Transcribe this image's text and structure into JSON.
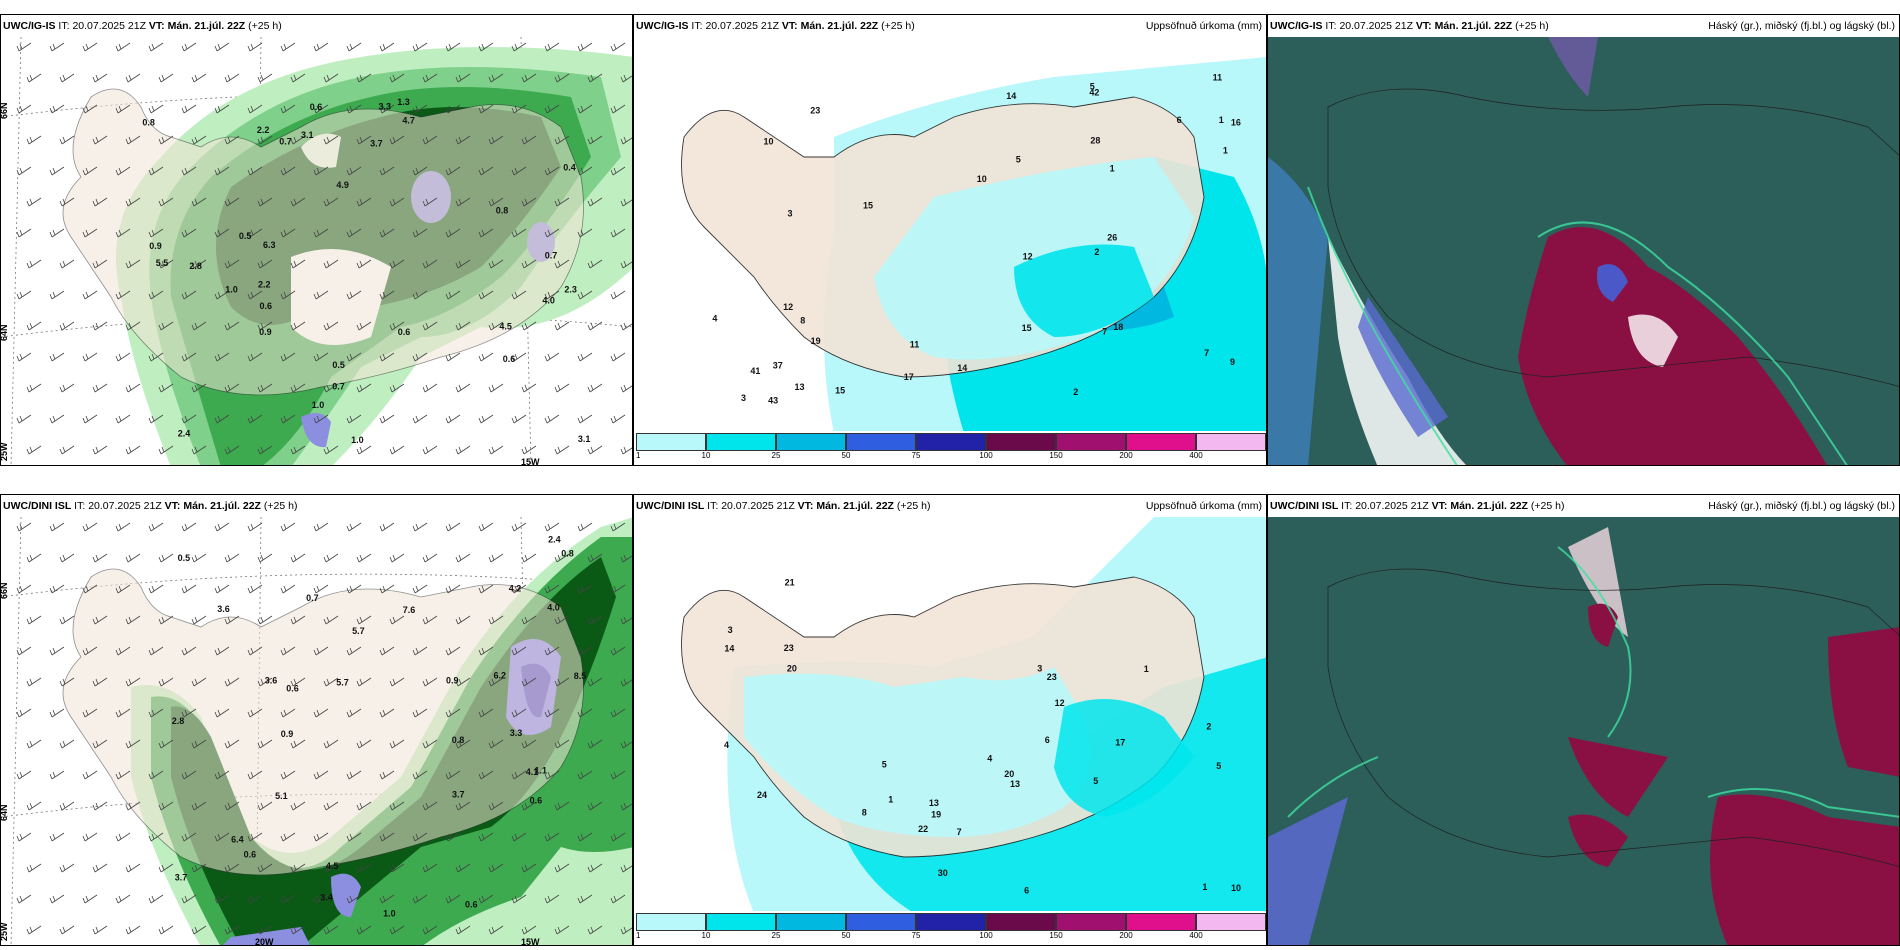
{
  "common": {
    "it_label": "IT:",
    "it_value": "20.07.2025 21Z",
    "vt_label": "VT:",
    "vt_value": "Mán. 21.júl. 22Z",
    "lead": "(+25 h)"
  },
  "rows": [
    {
      "model": "UWC/IG-IS"
    },
    {
      "model": "UWC/DINI ISL"
    }
  ],
  "titles": {
    "precip": "Uppsöfnuð úrkoma (mm)",
    "cloud": "Háský (gr.), miðský (fj.bl.) og lágský (bl.)"
  },
  "axis_labels": {
    "lat66": "66N",
    "lat64": "64N",
    "lon25": "25W",
    "lon20": "20W",
    "lon15": "15W"
  },
  "colorbar": {
    "ticks": [
      "1",
      "10",
      "25",
      "50",
      "75",
      "100",
      "150",
      "200",
      "400"
    ],
    "colors": [
      "#b8f7fa",
      "#00e5ec",
      "#00b8e0",
      "#2f5fe0",
      "#2222a8",
      "#6a0a4a",
      "#a0106e",
      "#e0108c",
      "#f4b8f0"
    ]
  },
  "colors": {
    "land": "#f2e4d6",
    "green_light": "#bfeec0",
    "green_mid": "#3daa50",
    "green_dark": "#0a5a16",
    "cyan_light": "#b8f7fa",
    "cyan": "#00e5ec",
    "cloud_base": "#2c5e5a",
    "cloud_magenta": "#8a1044"
  },
  "panels": {
    "p1_values": [
      "1.0",
      "3.1",
      "2.2",
      "1.3",
      "2.3",
      "0.6",
      "0.7",
      "5.5",
      "4.7",
      "6.3",
      "3.3",
      "4.0",
      "4.9",
      "4.5",
      "2.8",
      "0.9",
      "1.0",
      "3.7",
      "2.4",
      "0.8",
      "1.0",
      "0.5",
      "0.6",
      "0.7",
      "0.9",
      "2.2",
      "3.1",
      "0.8",
      "0.6",
      "0.4",
      "0.7",
      "0.6",
      "0.5"
    ],
    "p2_values": [
      "1",
      "2",
      "1",
      "1",
      "3",
      "7",
      "5",
      "10",
      "11",
      "5",
      "3",
      "4",
      "6",
      "8",
      "9",
      "11",
      "13",
      "12",
      "10",
      "17",
      "23",
      "42",
      "43",
      "37",
      "41",
      "26",
      "28",
      "14",
      "15",
      "15",
      "14",
      "16",
      "19",
      "12",
      "15",
      "18",
      "7",
      "2"
    ],
    "p4_values": [
      "0.7",
      "0.6",
      "0.8",
      "0.6",
      "0.5",
      "0.9",
      "1.0",
      "1.1",
      "3.7",
      "6.2",
      "8.5",
      "3.6",
      "4.0",
      "3.7",
      "7.6",
      "6.4",
      "4.5",
      "5.1",
      "2.8",
      "5.7",
      "4.2",
      "4.1",
      "3.6",
      "3.4",
      "3.3",
      "2.4",
      "5.7",
      "0.9",
      "0.8",
      "0.6",
      "0.6"
    ],
    "p5_values": [
      "1",
      "5",
      "1",
      "2",
      "3",
      "3",
      "4",
      "5",
      "8",
      "7",
      "6",
      "19",
      "20",
      "13",
      "17",
      "23",
      "10",
      "12",
      "14",
      "20",
      "13",
      "24",
      "30",
      "22",
      "21",
      "23",
      "1",
      "4",
      "6",
      "5"
    ]
  }
}
